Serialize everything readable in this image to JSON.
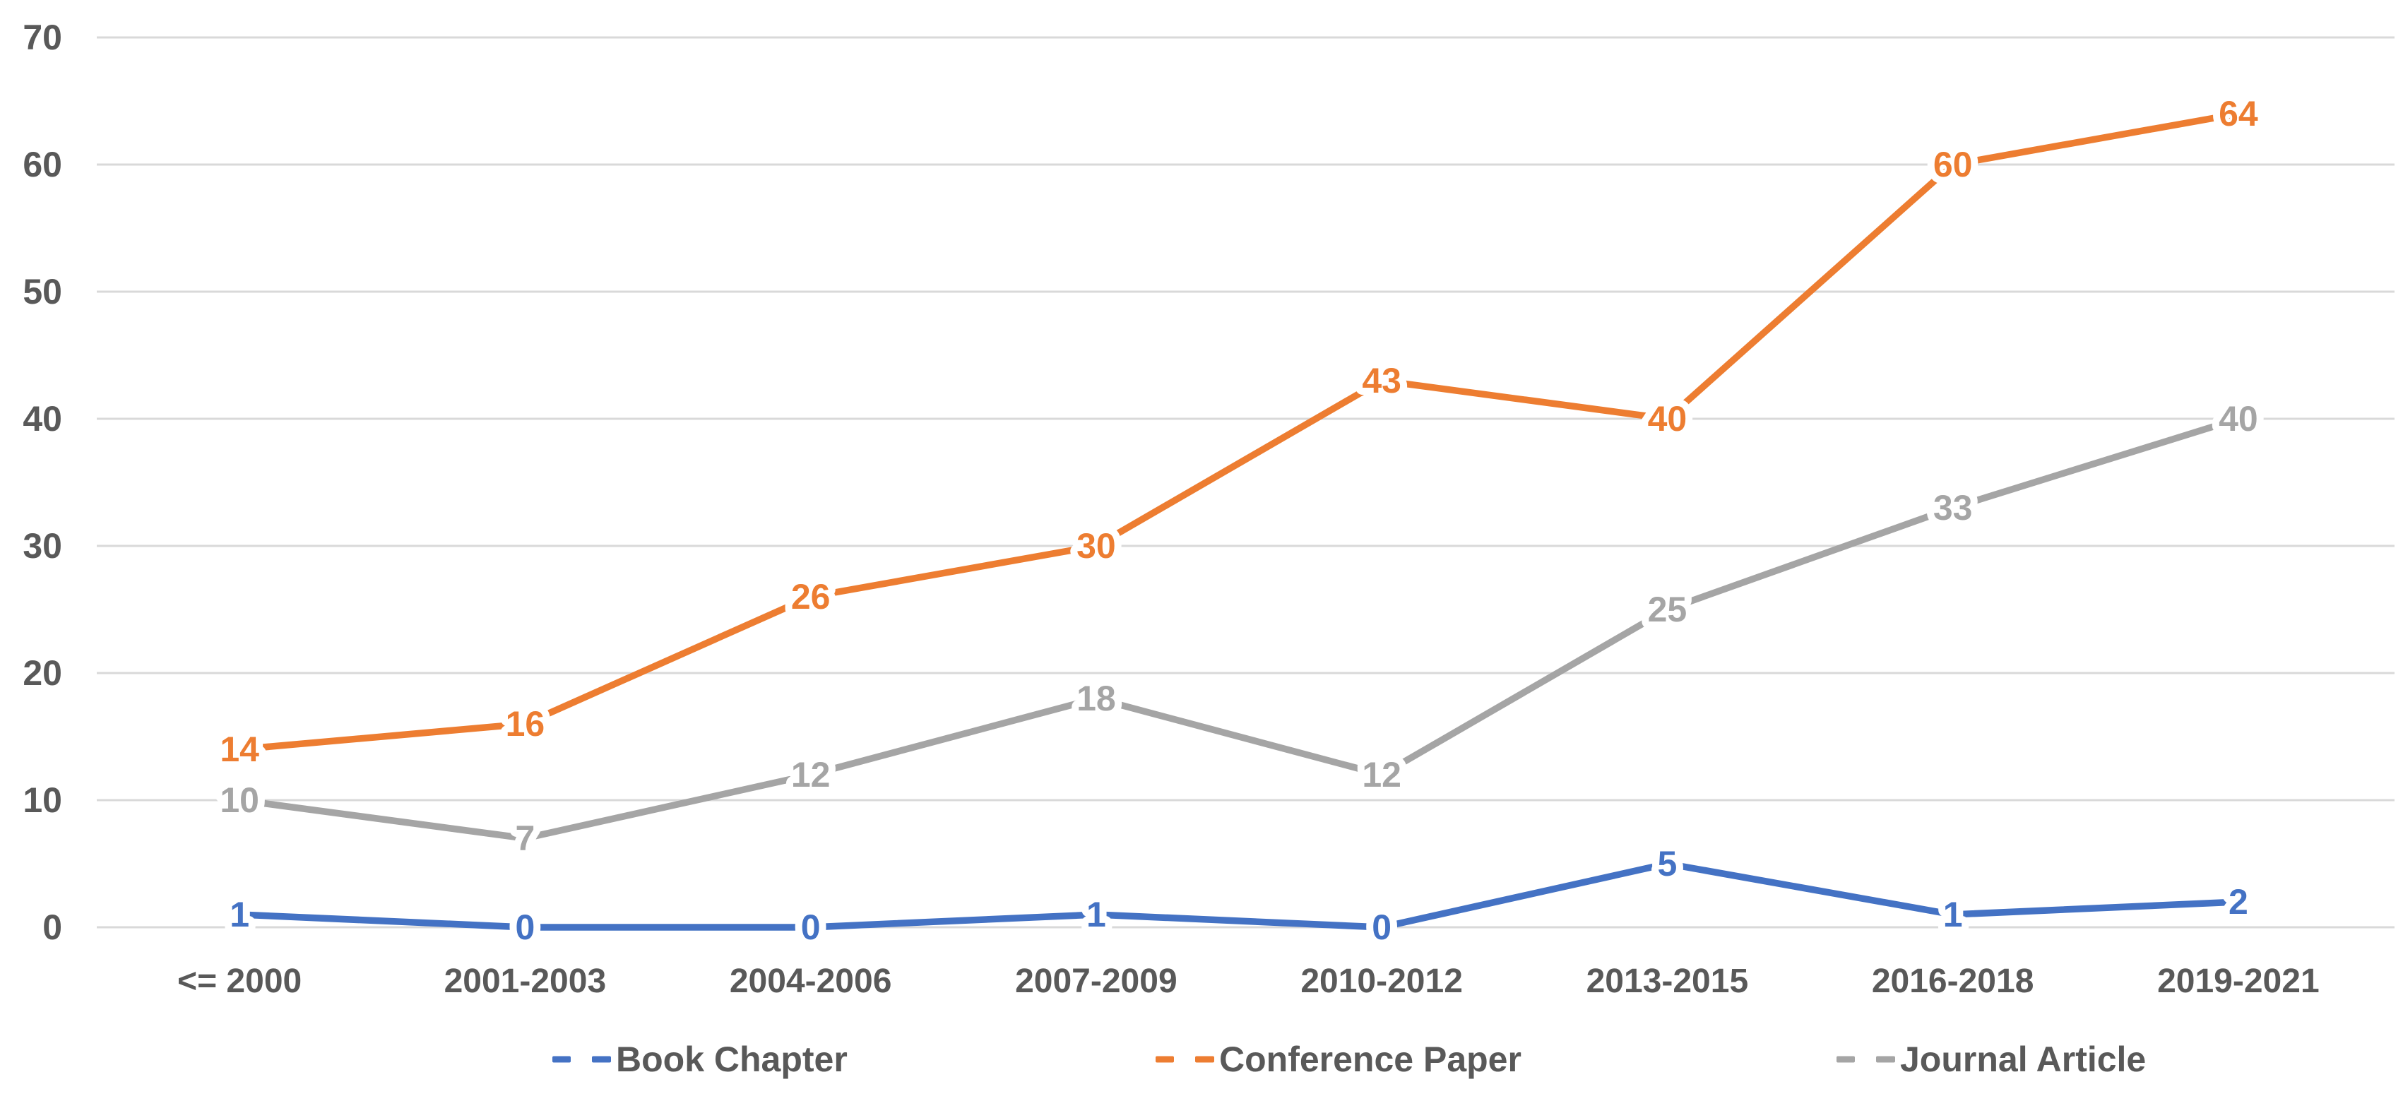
{
  "chart_data": {
    "type": "line",
    "title": "",
    "xlabel": "",
    "ylabel": "",
    "categories": [
      "<= 2000",
      "2001-2003",
      "2004-2006",
      "2007-2009",
      "2010-2012",
      "2013-2015",
      "2016-2018",
      "2019-2021"
    ],
    "series": [
      {
        "name": "Book Chapter",
        "color": "#4472C4",
        "values": [
          1,
          0,
          0,
          1,
          0,
          5,
          1,
          2
        ]
      },
      {
        "name": "Conference Paper",
        "color": "#ED7D31",
        "values": [
          14,
          16,
          26,
          30,
          43,
          40,
          60,
          64
        ]
      },
      {
        "name": "Journal Article",
        "color": "#A5A5A5",
        "values": [
          10,
          7,
          12,
          18,
          12,
          25,
          33,
          40
        ]
      }
    ],
    "y_ticks": [
      0,
      10,
      20,
      30,
      40,
      50,
      60,
      70
    ],
    "ylim": [
      0,
      70
    ],
    "grid": true,
    "legend_position": "bottom",
    "data_labels": "center",
    "colors": {
      "axis_text": "#595959",
      "gridline": "#D9D9D9",
      "background": "#FFFFFF",
      "label_halo": "#FFFFFF"
    }
  }
}
